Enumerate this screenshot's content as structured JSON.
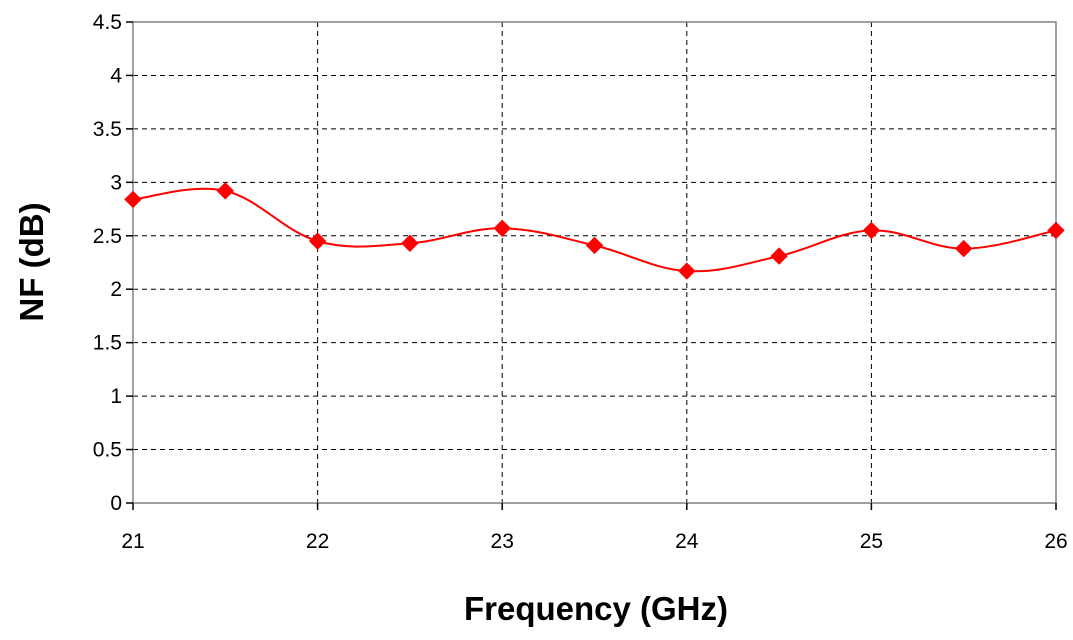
{
  "chart_data": {
    "type": "line",
    "title": "",
    "xlabel": "Frequency (GHz)",
    "ylabel": "NF (dB)",
    "xlim": [
      21,
      26
    ],
    "ylim": [
      0,
      4.5
    ],
    "x_ticks": [
      "21",
      "22",
      "23",
      "24",
      "25",
      "26"
    ],
    "y_ticks": [
      "0",
      "0.5",
      "1",
      "1.5",
      "2",
      "2.5",
      "3",
      "3.5",
      "4",
      "4.5"
    ],
    "grid": true,
    "legend": "none",
    "series": [
      {
        "color": "#ff0000",
        "marker": "diamond",
        "x": [
          21,
          21.5,
          22,
          22.5,
          23,
          23.5,
          24,
          24.5,
          25,
          25.5,
          26
        ],
        "y": [
          2.84,
          2.92,
          2.45,
          2.43,
          2.57,
          2.41,
          2.17,
          2.31,
          2.55,
          2.38,
          2.55
        ]
      }
    ]
  }
}
